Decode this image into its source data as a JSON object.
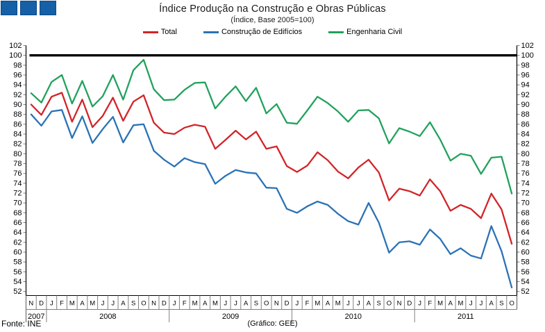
{
  "header": {
    "logo_color": "#1560A6",
    "title": "Índice Produção na Construção e Obras Públicas",
    "subtitle": "(Índice, Base 2005=100)"
  },
  "footer": {
    "source": "Fonte: INE",
    "credit": "(Gráfico: GEE)"
  },
  "chart_data": {
    "type": "line",
    "title": "Índice Produção na Construção e Obras Públicas",
    "subtitle": "(Índice, Base 2005=100)",
    "ylim": [
      52,
      102
    ],
    "ytick_step": 2,
    "reference_line": 100,
    "grid": "off",
    "legend_position": "top",
    "x_month_labels": [
      "N",
      "D",
      "J",
      "F",
      "M",
      "A",
      "M",
      "J",
      "J",
      "A",
      "S",
      "O",
      "N",
      "D",
      "J",
      "F",
      "M",
      "A",
      "M",
      "J",
      "J",
      "A",
      "S",
      "O",
      "N",
      "D",
      "J",
      "F",
      "M",
      "A",
      "M",
      "J",
      "J",
      "A",
      "S",
      "O",
      "N",
      "D",
      "J",
      "F",
      "M",
      "A",
      "M",
      "J",
      "J",
      "A",
      "S",
      "O"
    ],
    "year_groups": [
      {
        "label": "2007",
        "months": 2
      },
      {
        "label": "2008",
        "months": 12
      },
      {
        "label": "2009",
        "months": 12
      },
      {
        "label": "2010",
        "months": 12
      },
      {
        "label": "2011",
        "months": 10
      }
    ],
    "series": [
      {
        "name": "Total",
        "color": "#D22428",
        "values": [
          90.0,
          87.9,
          91.6,
          92.4,
          86.5,
          91.0,
          85.4,
          87.7,
          91.4,
          86.7,
          90.6,
          91.9,
          86.3,
          84.3,
          84.0,
          85.3,
          85.9,
          85.5,
          81.0,
          82.8,
          84.7,
          82.9,
          84.5,
          81.0,
          81.5,
          77.5,
          76.3,
          77.6,
          80.3,
          78.7,
          76.4,
          75.0,
          77.2,
          78.8,
          76.2,
          70.5,
          72.9,
          72.4,
          71.5,
          74.8,
          72.4,
          68.4,
          69.6,
          68.8,
          66.9,
          71.9,
          68.7,
          61.7
        ]
      },
      {
        "name": "Construção de Edifícios",
        "color": "#2A72B5",
        "values": [
          88.0,
          85.7,
          88.6,
          88.9,
          83.2,
          87.6,
          82.2,
          85.0,
          87.5,
          82.3,
          85.8,
          86.0,
          80.6,
          78.8,
          77.4,
          79.1,
          78.3,
          77.9,
          73.9,
          75.5,
          76.7,
          76.2,
          76.0,
          73.1,
          73.0,
          68.8,
          68.0,
          69.3,
          70.3,
          69.6,
          67.8,
          66.3,
          65.6,
          70.0,
          66.0,
          59.9,
          62.0,
          62.2,
          61.5,
          64.6,
          62.7,
          59.6,
          60.8,
          59.3,
          58.7,
          65.3,
          60.2,
          52.8
        ]
      },
      {
        "name": "Engenharia Civil",
        "color": "#21A15C",
        "values": [
          92.3,
          90.4,
          94.6,
          96.0,
          90.2,
          94.8,
          89.6,
          91.7,
          96.0,
          91.0,
          97.0,
          99.1,
          93.1,
          90.9,
          91.0,
          93.0,
          94.4,
          94.5,
          89.2,
          91.6,
          93.7,
          90.7,
          93.4,
          88.2,
          90.1,
          86.3,
          86.1,
          88.8,
          91.6,
          90.3,
          88.6,
          86.5,
          88.8,
          88.9,
          87.2,
          82.1,
          85.2,
          84.5,
          83.6,
          86.4,
          82.9,
          78.6,
          80.0,
          79.6,
          75.9,
          79.2,
          79.4,
          71.9
        ]
      }
    ]
  }
}
